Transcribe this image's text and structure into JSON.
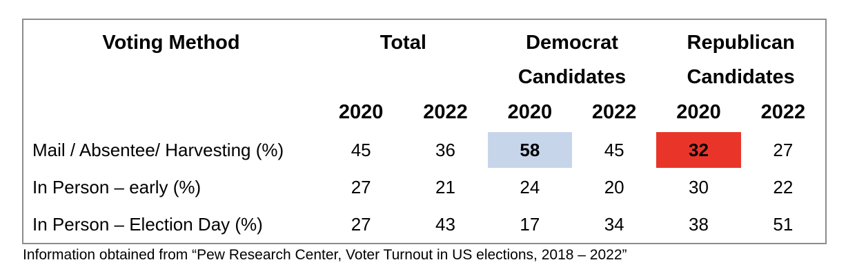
{
  "colors": {
    "highlight_blue": "#c7d5ea",
    "highlight_red": "#e93529",
    "table_border": "#8c8c8c",
    "text": "#000000",
    "background": "#ffffff"
  },
  "table": {
    "corner_header": "Voting Method",
    "group_headers": [
      "Total",
      "Democrat Candidates",
      "Republican Candidates"
    ],
    "year_headers": [
      "2020",
      "2022",
      "2020",
      "2022",
      "2020",
      "2022"
    ],
    "rows": [
      {
        "label": "Mail / Absentee/ Harvesting (%)",
        "values": [
          "45",
          "36",
          "58",
          "45",
          "32",
          "27"
        ]
      },
      {
        "label": "In Person – early (%)",
        "values": [
          "27",
          "21",
          "24",
          "20",
          "30",
          "22"
        ]
      },
      {
        "label": "In Person – Election Day (%)",
        "values": [
          "27",
          "43",
          "17",
          "34",
          "38",
          "51"
        ]
      }
    ],
    "highlighted_cells": [
      {
        "row": 0,
        "col": 2,
        "value": "58",
        "color": "blue"
      },
      {
        "row": 0,
        "col": 4,
        "value": "32",
        "color": "red"
      }
    ]
  },
  "footer": {
    "source_text": "Information obtained from “Pew Research Center, Voter Turnout in US elections, 2018 – 2022”"
  },
  "chart_data": {
    "type": "table",
    "title": "Voting Method",
    "columns": [
      "Voting Method",
      "Total 2020",
      "Total 2022",
      "Democrat Candidates 2020",
      "Democrat Candidates 2022",
      "Republican Candidates 2020",
      "Republican Candidates 2022"
    ],
    "rows": [
      [
        "Mail / Absentee/ Harvesting (%)",
        45,
        36,
        58,
        45,
        32,
        27
      ],
      [
        "In Person – early (%)",
        27,
        21,
        24,
        20,
        30,
        22
      ],
      [
        "In Person – Election Day (%)",
        27,
        43,
        17,
        34,
        38,
        51
      ]
    ],
    "highlights": [
      {
        "row": "Mail / Absentee/ Harvesting (%)",
        "column": "Democrat Candidates 2020",
        "value": 58,
        "color": "#c7d5ea"
      },
      {
        "row": "Mail / Absentee/ Harvesting (%)",
        "column": "Republican Candidates 2020",
        "value": 32,
        "color": "#e93529"
      }
    ],
    "source": "Pew Research Center, Voter Turnout in US elections, 2018 – 2022"
  }
}
